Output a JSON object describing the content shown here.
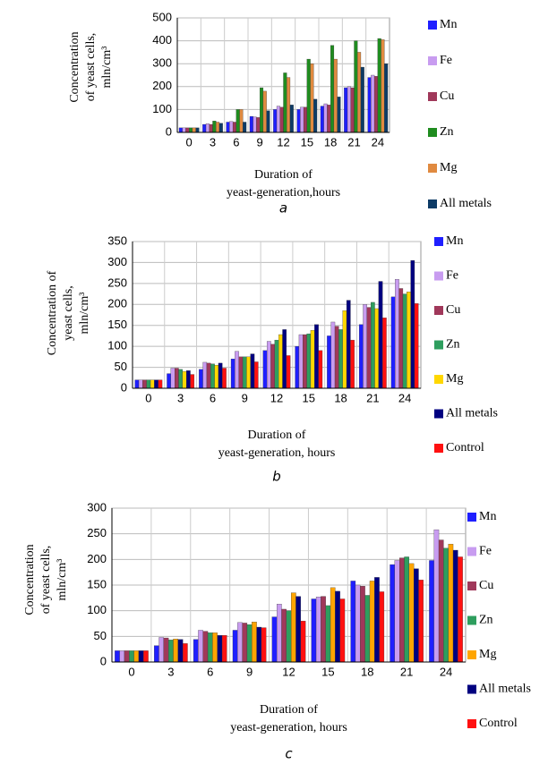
{
  "chart_data": [
    {
      "type": "bar",
      "y_label": [
        "Concentration",
        "of yeast cells,",
        "mln/cm³"
      ],
      "x_label": [
        "Duration of",
        "yeast-generation,hours"
      ],
      "caption": "a",
      "categories": [
        "0",
        "3",
        "6",
        "9",
        "12",
        "15",
        "18",
        "21",
        "24"
      ],
      "ylim": [
        0,
        500
      ],
      "yticks": [
        0,
        100,
        200,
        300,
        400,
        500
      ],
      "grid": true,
      "series": [
        {
          "name": "Mn",
          "color": "#1f1fff",
          "values": [
            20,
            35,
            45,
            70,
            100,
            100,
            115,
            195,
            240
          ]
        },
        {
          "name": "Fe",
          "color": "#c89cf0",
          "values": [
            20,
            38,
            48,
            68,
            115,
            110,
            125,
            200,
            250
          ]
        },
        {
          "name": "Cu",
          "color": "#a0385a",
          "values": [
            20,
            35,
            45,
            65,
            110,
            110,
            120,
            195,
            245
          ]
        },
        {
          "name": "Zn",
          "color": "#1f8c1f",
          "values": [
            20,
            50,
            100,
            195,
            260,
            320,
            380,
            400,
            410
          ]
        },
        {
          "name": "Mg",
          "color": "#e08a40",
          "values": [
            20,
            45,
            100,
            180,
            240,
            300,
            320,
            350,
            405
          ]
        },
        {
          "name": "All metals",
          "color": "#0d3b66",
          "values": [
            20,
            40,
            45,
            95,
            120,
            145,
            155,
            285,
            300
          ]
        }
      ]
    },
    {
      "type": "bar",
      "y_label": [
        "Concentration of",
        "yeast cells,",
        "mln/cm³"
      ],
      "x_label": [
        "Duration of",
        "yeast-generation, hours"
      ],
      "caption": "b",
      "categories": [
        "0",
        "3",
        "6",
        "9",
        "12",
        "15",
        "18",
        "21",
        "24"
      ],
      "ylim": [
        0,
        350
      ],
      "yticks": [
        0,
        50,
        100,
        150,
        200,
        250,
        300,
        350
      ],
      "grid": true,
      "series": [
        {
          "name": "Mn",
          "color": "#1f1fff",
          "values": [
            20,
            35,
            45,
            70,
            90,
            100,
            125,
            152,
            218
          ]
        },
        {
          "name": "Fe",
          "color": "#c89cf0",
          "values": [
            20,
            48,
            62,
            88,
            112,
            128,
            158,
            200,
            260
          ]
        },
        {
          "name": "Cu",
          "color": "#a0385a",
          "values": [
            20,
            48,
            60,
            75,
            105,
            128,
            148,
            193,
            238
          ]
        },
        {
          "name": "Zn",
          "color": "#2e9e5e",
          "values": [
            20,
            45,
            58,
            75,
            115,
            130,
            140,
            205,
            225
          ]
        },
        {
          "name": "Mg",
          "color": "#ffd700",
          "values": [
            20,
            40,
            55,
            75,
            128,
            138,
            185,
            190,
            230
          ]
        },
        {
          "name": "All metals",
          "color": "#000080",
          "values": [
            20,
            42,
            60,
            82,
            140,
            152,
            210,
            255,
            305
          ]
        },
        {
          "name": "Control",
          "color": "#ff1010",
          "values": [
            20,
            33,
            48,
            63,
            78,
            90,
            115,
            168,
            202
          ]
        }
      ]
    },
    {
      "type": "bar",
      "y_label": [
        "Concentration",
        "of yeast cells,",
        "mln/cm³"
      ],
      "x_label": [
        "Duration of",
        "yeast-generation, hours"
      ],
      "caption": "c",
      "categories": [
        "0",
        "3",
        "6",
        "9",
        "12",
        "15",
        "18",
        "21",
        "24"
      ],
      "ylim": [
        0,
        300
      ],
      "yticks": [
        0,
        50,
        100,
        150,
        200,
        250,
        300
      ],
      "grid": true,
      "series": [
        {
          "name": "Mn",
          "color": "#1f1fff",
          "values": [
            22,
            32,
            44,
            62,
            88,
            123,
            158,
            190,
            198
          ]
        },
        {
          "name": "Fe",
          "color": "#c89cf0",
          "values": [
            22,
            48,
            62,
            77,
            113,
            127,
            150,
            198,
            258
          ]
        },
        {
          "name": "Cu",
          "color": "#a0385a",
          "values": [
            22,
            47,
            60,
            76,
            103,
            128,
            148,
            203,
            238
          ]
        },
        {
          "name": "Zn",
          "color": "#2e9e5e",
          "values": [
            22,
            43,
            57,
            73,
            100,
            110,
            130,
            205,
            222
          ]
        },
        {
          "name": "Mg",
          "color": "#ffa500",
          "values": [
            22,
            45,
            57,
            78,
            135,
            145,
            158,
            192,
            230
          ]
        },
        {
          "name": "All metals",
          "color": "#000080",
          "values": [
            22,
            44,
            52,
            68,
            128,
            138,
            165,
            182,
            218
          ]
        },
        {
          "name": "Control",
          "color": "#ff1010",
          "values": [
            22,
            36,
            52,
            67,
            80,
            123,
            137,
            160,
            205
          ]
        }
      ]
    }
  ]
}
